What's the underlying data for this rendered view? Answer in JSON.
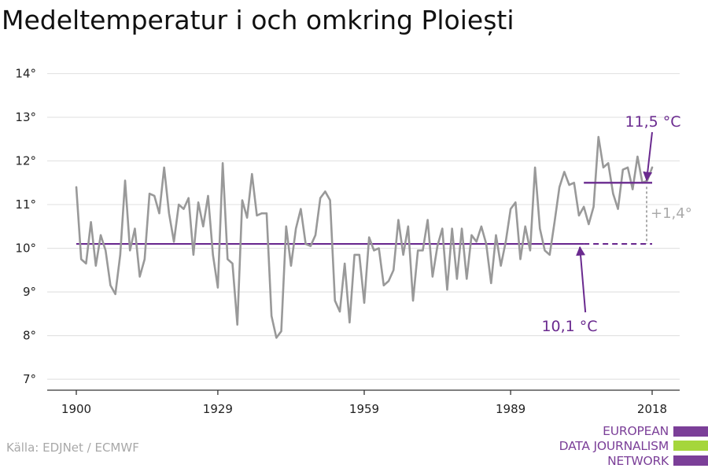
{
  "chart_data": {
    "type": "line",
    "title": "Medeltemperatur i och omkring Ploiești",
    "xlabel": "",
    "ylabel": "",
    "x_ticks": [
      1900,
      1929,
      1959,
      1989,
      2018
    ],
    "y_ticks": [
      7,
      8,
      9,
      10,
      11,
      12,
      13,
      14
    ],
    "y_tick_labels": [
      "7°",
      "8°",
      "9°",
      "10°",
      "11°",
      "12°",
      "13°",
      "14°"
    ],
    "xlim": [
      1900,
      2018
    ],
    "ylim": [
      6.75,
      14.1
    ],
    "grid": true,
    "series": [
      {
        "name": "",
        "color": "#999999",
        "x_start": 1900,
        "values": [
          11.4,
          9.75,
          9.65,
          10.6,
          9.6,
          10.3,
          9.95,
          9.15,
          8.95,
          9.85,
          11.55,
          9.95,
          10.45,
          9.35,
          9.75,
          11.25,
          11.2,
          10.8,
          11.85,
          10.8,
          10.15,
          11.0,
          10.9,
          11.15,
          9.85,
          11.05,
          10.5,
          11.2,
          9.85,
          9.1,
          11.95,
          9.75,
          9.65,
          8.25,
          11.1,
          10.7,
          11.7,
          10.75,
          10.8,
          10.8,
          8.45,
          7.95,
          8.1,
          10.5,
          9.6,
          10.45,
          10.9,
          10.1,
          10.05,
          10.3,
          11.15,
          11.3,
          11.1,
          8.8,
          8.55,
          9.65,
          8.3,
          9.85,
          9.85,
          8.75,
          10.25,
          9.95,
          10.0,
          9.15,
          9.25,
          9.5,
          10.65,
          9.85,
          10.5,
          8.8,
          9.95,
          9.95,
          10.65,
          9.35,
          10.05,
          10.45,
          9.05,
          10.45,
          9.3,
          10.45,
          9.3,
          10.3,
          10.15,
          10.5,
          10.1,
          9.2,
          10.3,
          9.6,
          10.15,
          10.9,
          11.05,
          9.75,
          10.5,
          9.95,
          11.85,
          10.45,
          9.95,
          9.85,
          10.6,
          11.4,
          11.75,
          11.45,
          11.5,
          10.75,
          10.95,
          10.55,
          10.95,
          12.55,
          11.85,
          11.95,
          11.25,
          10.9,
          11.8,
          11.85,
          11.35,
          12.1,
          11.5,
          11.55,
          11.85
        ]
      }
    ],
    "baseline": {
      "value": 10.1,
      "from": 1900,
      "dashed_from": 2004,
      "to": 2018,
      "color": "#6a2a8f"
    },
    "recent_mean": {
      "value": 11.5,
      "from": 2004,
      "to": 2018,
      "color": "#6a2a8f"
    },
    "annotations": {
      "recent_label": "11,5 °C",
      "baseline_label": "10,1 °C",
      "difference_label": "+1,4°"
    }
  },
  "source": "Källa: EDJNet / ECMWF",
  "logo": {
    "lines": [
      "EUROPEAN",
      "DATA JOURNALISM",
      "NETWORK"
    ],
    "colors": [
      "#7b3f98",
      "#a5d63b",
      "#7b3f98"
    ]
  }
}
